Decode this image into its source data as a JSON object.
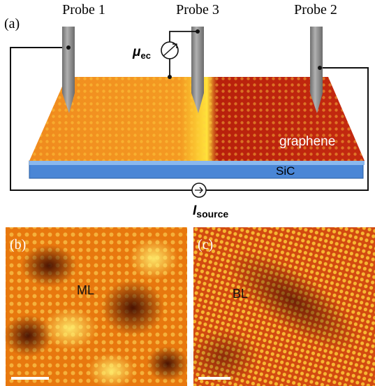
{
  "panel_a": {
    "label": "(a)",
    "probes": [
      "Probe 1",
      "Probe 3",
      "Probe 2"
    ],
    "meter": {
      "symbol": "μ",
      "subscript": "ec"
    },
    "layer_top": "graphene",
    "layer_bottom": "SiC",
    "source": {
      "symbol": "I",
      "subscript": "source"
    }
  },
  "panel_b": {
    "label": "(b)",
    "region": "ML"
  },
  "panel_c": {
    "label": "(c)",
    "region": "BL"
  }
}
